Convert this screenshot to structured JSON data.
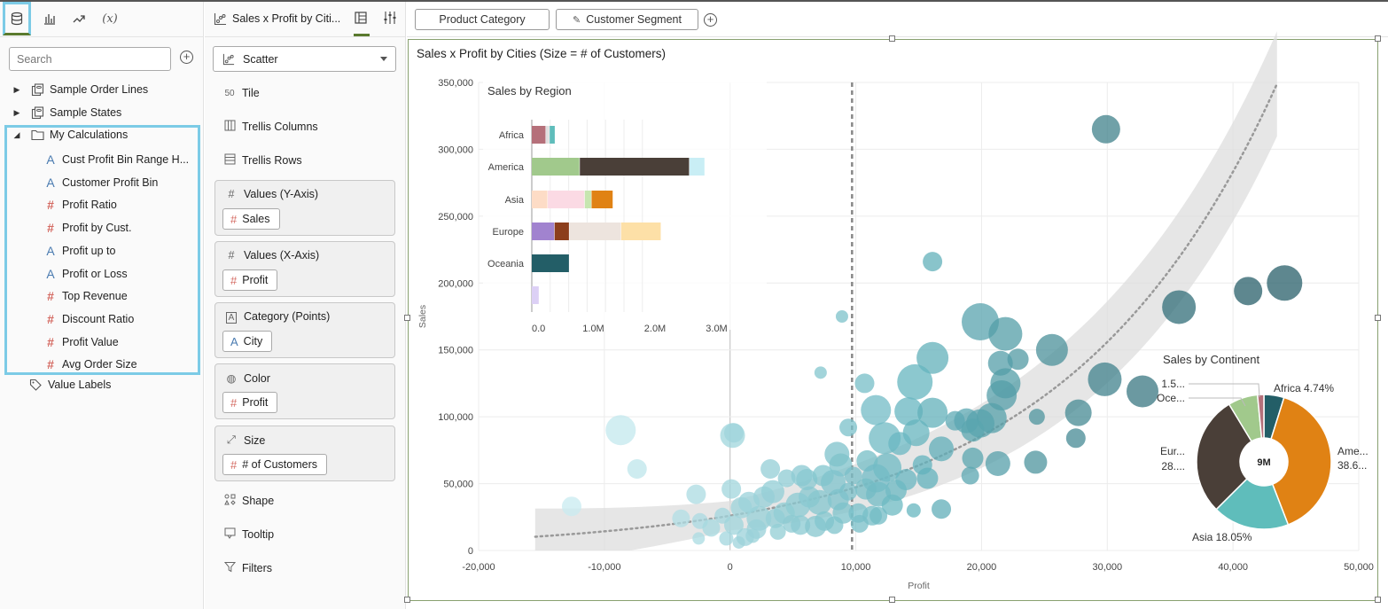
{
  "data_panel": {
    "search_placeholder": "Search",
    "sources": [
      {
        "label": "Sample Order Lines"
      },
      {
        "label": "Sample States"
      }
    ],
    "folder": {
      "label": "My Calculations"
    },
    "calculations": [
      {
        "type": "A",
        "label": "Cust Profit Bin Range H..."
      },
      {
        "type": "A",
        "label": "Customer Profit Bin"
      },
      {
        "type": "#",
        "label": "Profit Ratio"
      },
      {
        "type": "#",
        "label": "Profit by Cust."
      },
      {
        "type": "A",
        "label": "Profit up to"
      },
      {
        "type": "A",
        "label": "Profit or Loss"
      },
      {
        "type": "#",
        "label": "Top Revenue"
      },
      {
        "type": "#",
        "label": "Discount Ratio"
      },
      {
        "type": "#",
        "label": "Profit Value"
      },
      {
        "type": "#",
        "label": "Avg Order Size"
      }
    ],
    "value_labels": "Value Labels",
    "tab_calc_label": "(x)"
  },
  "grammar_panel": {
    "title": "Sales x Profit by Citi...",
    "chart_type": "Scatter",
    "tile": "Tile",
    "tile_icon_text": "50",
    "trellis_columns": "Trellis Columns",
    "trellis_rows": "Trellis Rows",
    "sections": [
      {
        "title": "Values (Y-Axis)",
        "icon": "#",
        "pill": "Sales",
        "pill_type": "#"
      },
      {
        "title": "Values (X-Axis)",
        "icon": "#",
        "pill": "Profit",
        "pill_type": "#"
      },
      {
        "title": "Category (Points)",
        "icon": "A",
        "pill": "City",
        "pill_type": "A"
      },
      {
        "title": "Color",
        "icon": "palette",
        "pill": "Profit",
        "pill_type": "#"
      },
      {
        "title": "Size",
        "icon": "size",
        "pill": "# of Customers",
        "pill_type": "#"
      }
    ],
    "shape": "Shape",
    "tooltip": "Tooltip",
    "filters": "Filters"
  },
  "canvas": {
    "filters": [
      "Product Category",
      "Customer Segment"
    ],
    "title": "Sales x Profit by Cities (Size = # of Customers)"
  },
  "colors": {
    "accent_highlight": "#7ccbe6",
    "active_tab": "#5a7a2e",
    "measure_icon": "#d46a62",
    "attribute_icon": "#4a7bb0"
  },
  "chart_data": [
    {
      "type": "scatter",
      "title": "Sales x Profit by Cities (Size = # of Customers)",
      "xlabel": "Profit",
      "ylabel": "Sales",
      "xlim": [
        -20000,
        50000
      ],
      "ylim": [
        0,
        350000
      ],
      "xticks": [
        "-20,000",
        "-10,000",
        "0",
        "10,000",
        "20,000",
        "30,000",
        "40,000",
        "50,000"
      ],
      "yticks": [
        "0",
        "50,000",
        "100,000",
        "150,000",
        "200,000",
        "250,000",
        "300,000",
        "350,000"
      ],
      "reference_line_x": 9700,
      "grid": true,
      "points": [
        {
          "x": 29900,
          "y": 315000,
          "s": 16
        },
        {
          "x": 44100,
          "y": 200000,
          "s": 20
        },
        {
          "x": 41200,
          "y": 194000,
          "s": 16
        },
        {
          "x": 35700,
          "y": 182000,
          "s": 19
        },
        {
          "x": 29800,
          "y": 128000,
          "s": 19
        },
        {
          "x": 32800,
          "y": 119000,
          "s": 18
        },
        {
          "x": 16100,
          "y": 216000,
          "s": 11
        },
        {
          "x": 8900,
          "y": 175000,
          "s": 7
        },
        {
          "x": 19900,
          "y": 171000,
          "s": 21
        },
        {
          "x": 21900,
          "y": 162000,
          "s": 19
        },
        {
          "x": 25600,
          "y": 150000,
          "s": 18
        },
        {
          "x": 16100,
          "y": 144000,
          "s": 18
        },
        {
          "x": 22900,
          "y": 143000,
          "s": 12
        },
        {
          "x": 21500,
          "y": 140000,
          "s": 14
        },
        {
          "x": 21900,
          "y": 125000,
          "s": 17
        },
        {
          "x": 21600,
          "y": 116000,
          "s": 17
        },
        {
          "x": 14700,
          "y": 126000,
          "s": 20
        },
        {
          "x": 7200,
          "y": 133000,
          "s": 7
        },
        {
          "x": 10700,
          "y": 125000,
          "s": 11
        },
        {
          "x": 11600,
          "y": 105000,
          "s": 17
        },
        {
          "x": 14200,
          "y": 104000,
          "s": 16
        },
        {
          "x": 16100,
          "y": 103000,
          "s": 17
        },
        {
          "x": 17900,
          "y": 97000,
          "s": 11
        },
        {
          "x": 18800,
          "y": 97000,
          "s": 14
        },
        {
          "x": 20800,
          "y": 99000,
          "s": 17
        },
        {
          "x": 19900,
          "y": 95000,
          "s": 16
        },
        {
          "x": 19300,
          "y": 90000,
          "s": 13
        },
        {
          "x": 24400,
          "y": 100000,
          "s": 9
        },
        {
          "x": 27700,
          "y": 103000,
          "s": 15
        },
        {
          "x": 27500,
          "y": 84000,
          "s": 11
        },
        {
          "x": 14800,
          "y": 88000,
          "s": 15
        },
        {
          "x": 12300,
          "y": 84000,
          "s": 18
        },
        {
          "x": 13500,
          "y": 80000,
          "s": 13
        },
        {
          "x": 16800,
          "y": 76000,
          "s": 14
        },
        {
          "x": 19300,
          "y": 69000,
          "s": 12
        },
        {
          "x": 21300,
          "y": 65000,
          "s": 14
        },
        {
          "x": 24300,
          "y": 66000,
          "s": 13
        },
        {
          "x": 12500,
          "y": 62000,
          "s": 16
        },
        {
          "x": 15300,
          "y": 64000,
          "s": 11
        },
        {
          "x": 10900,
          "y": 67000,
          "s": 12
        },
        {
          "x": 11600,
          "y": 54000,
          "s": 16
        },
        {
          "x": 14000,
          "y": 53000,
          "s": 12
        },
        {
          "x": 15700,
          "y": 54000,
          "s": 12
        },
        {
          "x": 19100,
          "y": 56000,
          "s": 10
        },
        {
          "x": 13200,
          "y": 45000,
          "s": 12
        },
        {
          "x": 9400,
          "y": 92000,
          "s": 10
        },
        {
          "x": 8500,
          "y": 72000,
          "s": 14
        },
        {
          "x": 8800,
          "y": 64000,
          "s": 13
        },
        {
          "x": 5700,
          "y": 56000,
          "s": 12
        },
        {
          "x": 6100,
          "y": 53000,
          "s": 12
        },
        {
          "x": 3200,
          "y": 61000,
          "s": 11
        },
        {
          "x": 4500,
          "y": 54000,
          "s": 10
        },
        {
          "x": 7400,
          "y": 56000,
          "s": 12
        },
        {
          "x": 8200,
          "y": 51000,
          "s": 14
        },
        {
          "x": 9800,
          "y": 56000,
          "s": 10
        },
        {
          "x": 10800,
          "y": 46000,
          "s": 12
        },
        {
          "x": 11800,
          "y": 42000,
          "s": 14
        },
        {
          "x": 12900,
          "y": 34000,
          "s": 12
        },
        {
          "x": 11300,
          "y": 26000,
          "s": 11
        },
        {
          "x": 14600,
          "y": 30000,
          "s": 8
        },
        {
          "x": 16800,
          "y": 31000,
          "s": 11
        },
        {
          "x": 9400,
          "y": 44000,
          "s": 10
        },
        {
          "x": 8600,
          "y": 38000,
          "s": 12
        },
        {
          "x": 7100,
          "y": 36000,
          "s": 14
        },
        {
          "x": 6300,
          "y": 40000,
          "s": 12
        },
        {
          "x": 5400,
          "y": 34000,
          "s": 14
        },
        {
          "x": 3400,
          "y": 44000,
          "s": 13
        },
        {
          "x": 2700,
          "y": 40000,
          "s": 12
        },
        {
          "x": 1500,
          "y": 36000,
          "s": 12
        },
        {
          "x": 4300,
          "y": 28000,
          "s": 12
        },
        {
          "x": 3600,
          "y": 24000,
          "s": 11
        },
        {
          "x": 2300,
          "y": 24000,
          "s": 14
        },
        {
          "x": 900,
          "y": 32000,
          "s": 12
        },
        {
          "x": 100,
          "y": 46000,
          "s": 11
        },
        {
          "x": 200,
          "y": 86000,
          "s": 14
        },
        {
          "x": 300,
          "y": 88000,
          "s": 11
        },
        {
          "x": -2700,
          "y": 42000,
          "s": 11
        },
        {
          "x": -3900,
          "y": 24000,
          "s": 10
        },
        {
          "x": -2400,
          "y": 22000,
          "s": 9
        },
        {
          "x": -600,
          "y": 26000,
          "s": 9
        },
        {
          "x": -1500,
          "y": 17000,
          "s": 10
        },
        {
          "x": 300,
          "y": 19000,
          "s": 11
        },
        {
          "x": 2100,
          "y": 16000,
          "s": 11
        },
        {
          "x": 3800,
          "y": 14000,
          "s": 9
        },
        {
          "x": 1800,
          "y": 11000,
          "s": 8
        },
        {
          "x": -300,
          "y": 9000,
          "s": 8
        },
        {
          "x": -2500,
          "y": 9000,
          "s": 7
        },
        {
          "x": 700,
          "y": 6000,
          "s": 7
        },
        {
          "x": 5600,
          "y": 19000,
          "s": 11
        },
        {
          "x": 6800,
          "y": 18000,
          "s": 12
        },
        {
          "x": 7500,
          "y": 22000,
          "s": 11
        },
        {
          "x": 9000,
          "y": 28000,
          "s": 12
        },
        {
          "x": 10200,
          "y": 28000,
          "s": 11
        },
        {
          "x": 11800,
          "y": 26000,
          "s": 10
        },
        {
          "x": 8300,
          "y": 19000,
          "s": 10
        },
        {
          "x": 10300,
          "y": 20000,
          "s": 10
        },
        {
          "x": 4900,
          "y": 20000,
          "s": 10
        },
        {
          "x": 1200,
          "y": 10000,
          "s": 10
        },
        {
          "x": -8700,
          "y": 90000,
          "s": 17
        },
        {
          "x": -7400,
          "y": 61000,
          "s": 11
        },
        {
          "x": -12600,
          "y": 33000,
          "s": 11
        }
      ]
    },
    {
      "type": "bar",
      "orientation": "horizontal-stacked",
      "title": "Sales by Region",
      "categories": [
        "Africa",
        "America",
        "Asia",
        "Europe",
        "Oceania",
        ""
      ],
      "xticks": [
        "0.0",
        "1.0M",
        "2.0M",
        "3.0M"
      ],
      "xlim": [
        0,
        3000000
      ],
      "segments": [
        [
          {
            "v": 230000,
            "c": "#b5707a"
          },
          {
            "v": 60000,
            "c": "#e0e0e0"
          },
          {
            "v": 90000,
            "c": "#5fbdbb"
          }
        ],
        [
          {
            "v": 780000,
            "c": "#a1c98c"
          },
          {
            "v": 1780000,
            "c": "#4a3f38"
          },
          {
            "v": 250000,
            "c": "#c9eef5"
          }
        ],
        [
          {
            "v": 260000,
            "c": "#fddcc6"
          },
          {
            "v": 600000,
            "c": "#fbdae4"
          },
          {
            "v": 110000,
            "c": "#c7e6b0"
          },
          {
            "v": 350000,
            "c": "#e08214"
          }
        ],
        [
          {
            "v": 370000,
            "c": "#a183cf"
          },
          {
            "v": 240000,
            "c": "#8c3e1c"
          },
          {
            "v": 840000,
            "c": "#ede4de"
          },
          {
            "v": 650000,
            "c": "#fde0a7"
          }
        ],
        [
          {
            "v": 610000,
            "c": "#235e67"
          }
        ],
        [
          {
            "v": 120000,
            "c": "#dcd0f5"
          }
        ]
      ]
    },
    {
      "type": "pie",
      "title": "Sales by Continent",
      "center_label": "9M",
      "slices": [
        {
          "label": "Africa 4.74%",
          "value": 4.74,
          "color": "#235e67"
        },
        {
          "label": "Ame... 38.6...",
          "value": 38.6,
          "color": "#e08214"
        },
        {
          "label": "Asia 18.05%",
          "value": 18.05,
          "color": "#5fbdbb"
        },
        {
          "label": "Eur... 28....",
          "value": 28.3,
          "color": "#4a3f38"
        },
        {
          "label": "Oce...",
          "value": 7.0,
          "color": "#a1c98c"
        },
        {
          "label": "1.5...",
          "value": 1.5,
          "color": "#b5707a"
        }
      ]
    }
  ]
}
